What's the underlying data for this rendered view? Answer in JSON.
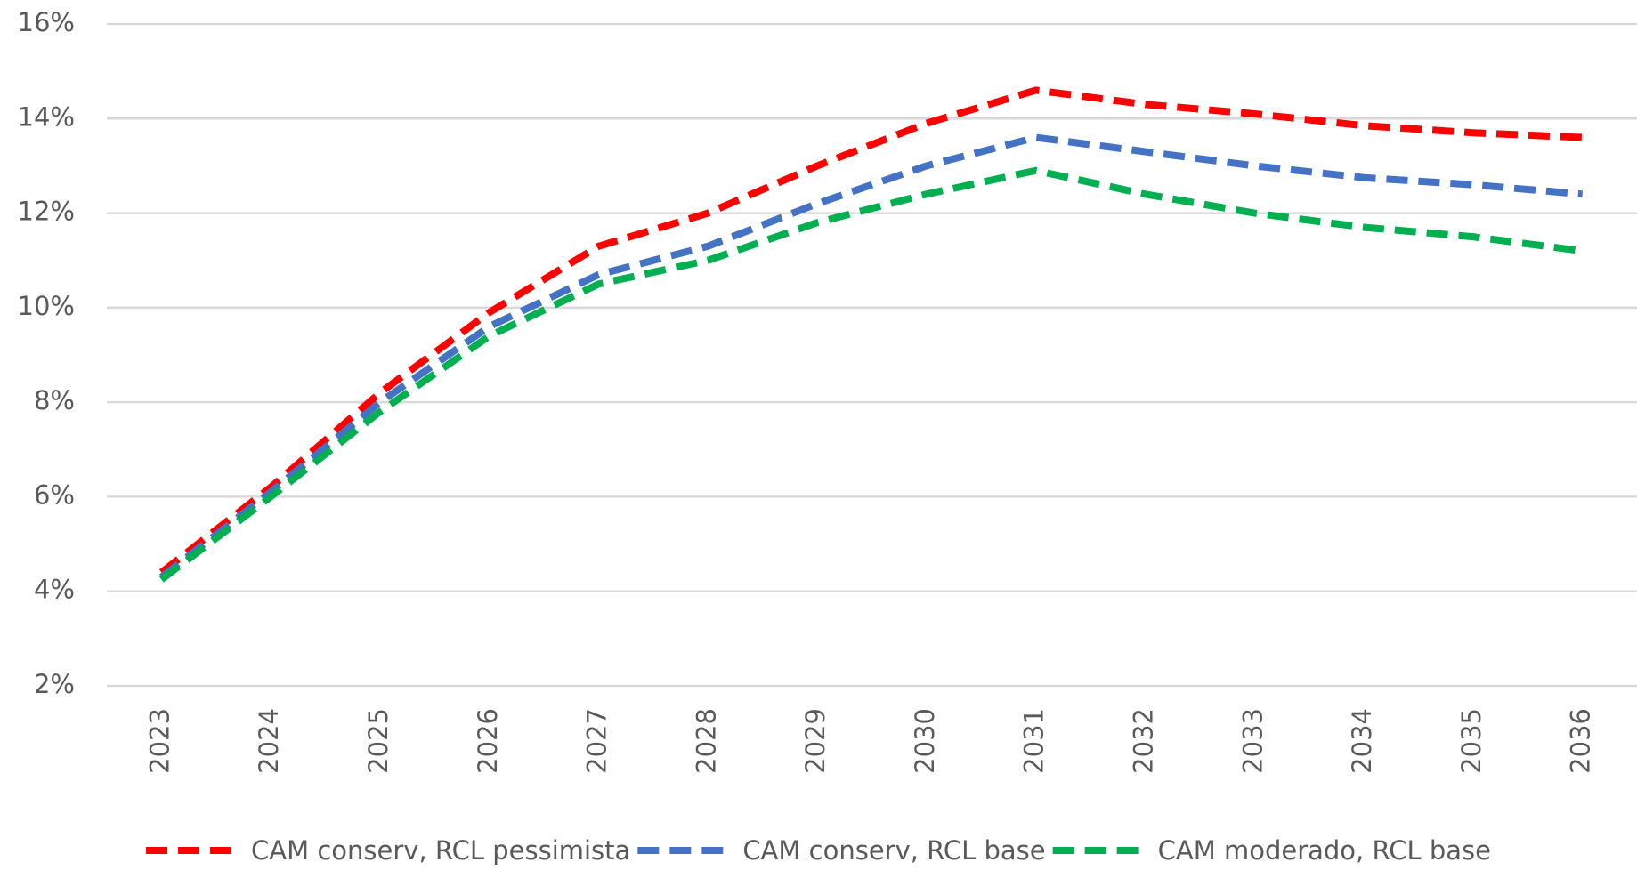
{
  "chart_data": {
    "type": "line",
    "categories": [
      "2023",
      "2024",
      "2025",
      "2026",
      "2027",
      "2028",
      "2029",
      "2030",
      "2031",
      "2032",
      "2033",
      "2034",
      "2035",
      "2036"
    ],
    "series": [
      {
        "name": "CAM conserv, RCL pessimista",
        "color": "#ff0000",
        "values": [
          4.4,
          6.2,
          8.2,
          9.9,
          11.3,
          12.0,
          13.0,
          13.9,
          14.6,
          14.3,
          14.1,
          13.85,
          13.7,
          13.6
        ]
      },
      {
        "name": "CAM conserv, RCL base",
        "color": "#4472c4",
        "values": [
          4.3,
          6.1,
          8.0,
          9.6,
          10.7,
          11.3,
          12.2,
          13.0,
          13.6,
          13.3,
          13.0,
          12.75,
          12.6,
          12.4
        ]
      },
      {
        "name": "CAM moderado, RCL base",
        "color": "#00b050",
        "values": [
          4.25,
          6.0,
          7.8,
          9.4,
          10.5,
          11.0,
          11.8,
          12.4,
          12.9,
          12.4,
          12.0,
          11.7,
          11.5,
          11.2
        ]
      }
    ],
    "ylim": [
      2,
      16
    ],
    "yticks": [
      {
        "value": 2,
        "label": "2%"
      },
      {
        "value": 4,
        "label": "4%"
      },
      {
        "value": 6,
        "label": "6%"
      },
      {
        "value": 8,
        "label": "8%"
      },
      {
        "value": 10,
        "label": "10%"
      },
      {
        "value": 12,
        "label": "12%"
      },
      {
        "value": 14,
        "label": "14%"
      },
      {
        "value": 16,
        "label": "16%"
      }
    ],
    "grid": true,
    "legend": "bottom"
  }
}
